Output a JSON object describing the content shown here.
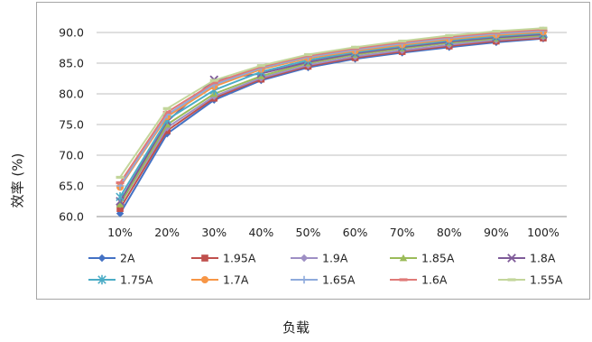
{
  "chart_data": {
    "type": "line",
    "xlabel": "负载",
    "ylabel": "效率 (%)",
    "categories": [
      "10%",
      "20%",
      "30%",
      "40%",
      "50%",
      "60%",
      "70%",
      "80%",
      "90%",
      "100%"
    ],
    "ylim": [
      60.0,
      90.0
    ],
    "yticks": [
      "60.0",
      "65.0",
      "70.0",
      "75.0",
      "80.0",
      "85.0",
      "90.0"
    ],
    "grid": true,
    "legend_position": "bottom",
    "series": [
      {
        "name": "2A",
        "color": "#4472c4",
        "marker": "diamond",
        "values": [
          60.5,
          73.5,
          79.0,
          82.2,
          84.3,
          85.7,
          86.7,
          87.6,
          88.4,
          89.0
        ]
      },
      {
        "name": "1.95A",
        "color": "#c0504d",
        "marker": "square",
        "values": [
          61.3,
          74.0,
          79.3,
          82.4,
          84.5,
          85.9,
          86.9,
          87.8,
          88.6,
          89.1
        ]
      },
      {
        "name": "1.9A",
        "color": "#9e8fc4",
        "marker": "diamond",
        "values": [
          62.0,
          74.5,
          79.6,
          82.6,
          84.7,
          86.1,
          87.1,
          88.0,
          88.8,
          89.3
        ]
      },
      {
        "name": "1.85A",
        "color": "#9bbb59",
        "marker": "triangle",
        "values": [
          62.0,
          75.0,
          80.0,
          82.9,
          85.0,
          86.4,
          87.4,
          88.3,
          89.0,
          89.5
        ]
      },
      {
        "name": "1.8A",
        "color": "#7f5b99",
        "marker": "x",
        "values": [
          62.5,
          75.5,
          82.3,
          83.3,
          85.2,
          86.6,
          87.6,
          88.5,
          89.2,
          89.7
        ]
      },
      {
        "name": "1.75A",
        "color": "#4bacc6",
        "marker": "star",
        "values": [
          63.2,
          75.8,
          80.6,
          83.6,
          85.5,
          86.8,
          87.8,
          88.7,
          89.4,
          89.9
        ]
      },
      {
        "name": "1.7A",
        "color": "#f79646",
        "marker": "circle",
        "values": [
          64.8,
          76.3,
          81.2,
          84.0,
          85.8,
          87.0,
          88.0,
          88.9,
          89.6,
          90.1
        ]
      },
      {
        "name": "1.65A",
        "color": "#8eaadc",
        "marker": "plus",
        "values": [
          65.0,
          76.6,
          81.5,
          84.2,
          86.0,
          87.2,
          88.2,
          89.1,
          89.8,
          90.3
        ]
      },
      {
        "name": "1.6A",
        "color": "#e07a78",
        "marker": "dash",
        "values": [
          65.5,
          77.0,
          81.8,
          84.4,
          86.2,
          87.4,
          88.4,
          89.3,
          90.0,
          90.5
        ]
      },
      {
        "name": "1.55A",
        "color": "#c3d69b",
        "marker": "dash",
        "values": [
          66.4,
          77.6,
          82.2,
          84.6,
          86.4,
          87.6,
          88.6,
          89.5,
          90.2,
          90.7
        ]
      }
    ]
  }
}
